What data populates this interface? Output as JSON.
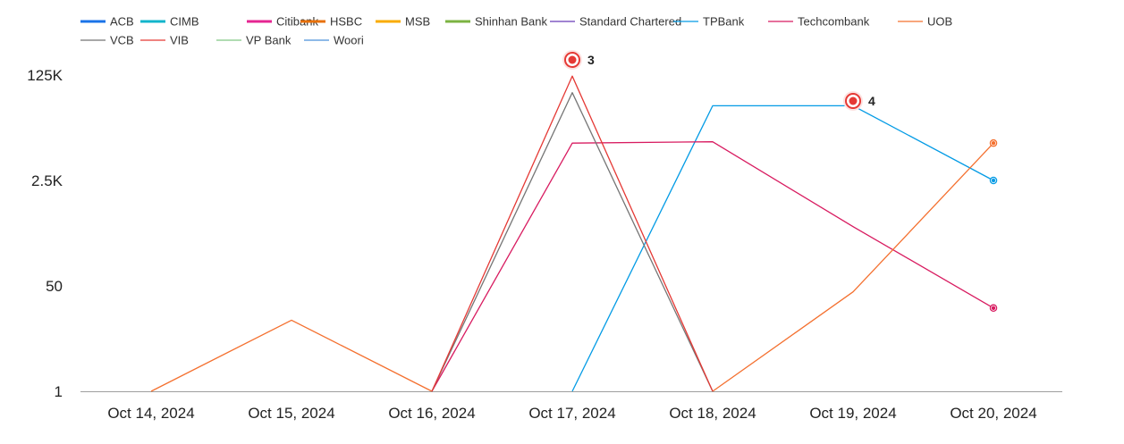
{
  "chart_data": {
    "type": "line",
    "title": "",
    "xlabel": "",
    "ylabel": "",
    "y_scale": "log",
    "y_ticks": [
      {
        "value": 1,
        "label": "1"
      },
      {
        "value": 50,
        "label": "50"
      },
      {
        "value": 2500,
        "label": "2.5K"
      },
      {
        "value": 125000,
        "label": "125K"
      }
    ],
    "ylim": [
      1,
      125000
    ],
    "grid": false,
    "legend_position": "top",
    "categories": [
      "Oct 14, 2024",
      "Oct 15, 2024",
      "Oct 16, 2024",
      "Oct 17, 2024",
      "Oct 18, 2024",
      "Oct 19, 2024",
      "Oct 20, 2024"
    ],
    "series": [
      {
        "name": "ACB",
        "color": "#1a73e8",
        "legend_style": "thick",
        "values": [
          null,
          null,
          null,
          null,
          null,
          null,
          null
        ]
      },
      {
        "name": "CIMB",
        "color": "#12b5cb",
        "legend_style": "thick",
        "values": [
          null,
          null,
          null,
          null,
          null,
          null,
          null
        ]
      },
      {
        "name": "Citibank",
        "color": "#e52592",
        "legend_style": "thick",
        "values": [
          null,
          null,
          null,
          null,
          null,
          null,
          null
        ]
      },
      {
        "name": "HSBC",
        "color": "#e8710a",
        "legend_style": "thick",
        "values": [
          null,
          null,
          null,
          null,
          null,
          null,
          null
        ]
      },
      {
        "name": "MSB",
        "color": "#f9ab00",
        "legend_style": "thick",
        "values": [
          null,
          null,
          null,
          null,
          null,
          null,
          null
        ]
      },
      {
        "name": "Shinhan Bank",
        "color": "#7cb342",
        "legend_style": "thick",
        "values": [
          null,
          null,
          null,
          null,
          null,
          null,
          null
        ]
      },
      {
        "name": "Standard Chartered",
        "color": "#673ab7",
        "legend_style": "thin",
        "values": [
          null,
          null,
          null,
          null,
          null,
          null,
          null
        ]
      },
      {
        "name": "TPBank",
        "color": "#039be5",
        "legend_style": "thin",
        "values": [
          null,
          null,
          null,
          1,
          40000,
          40000,
          2500
        ],
        "end_marker": true
      },
      {
        "name": "Techcombank",
        "color": "#d81b60",
        "legend_style": "thin",
        "values": [
          null,
          null,
          1,
          10000,
          10500,
          450,
          22
        ],
        "end_marker": true
      },
      {
        "name": "UOB",
        "color": "#f4702f",
        "legend_style": "thin",
        "values": [
          1,
          14,
          1,
          null,
          1,
          40,
          10000
        ],
        "end_marker": true
      },
      {
        "name": "VCB",
        "color": "#757575",
        "legend_style": "thin",
        "values": [
          null,
          null,
          1,
          65000,
          1,
          null,
          null
        ]
      },
      {
        "name": "VIB",
        "color": "#e53935",
        "legend_style": "thin",
        "values": [
          null,
          null,
          1,
          120000,
          1,
          null,
          null
        ]
      },
      {
        "name": "VP Bank",
        "color": "#81c784",
        "legend_style": "thin",
        "values": [
          null,
          null,
          null,
          null,
          null,
          null,
          null
        ]
      },
      {
        "name": "Woori",
        "color": "#4a90d9",
        "legend_style": "thin",
        "values": [
          null,
          null,
          null,
          null,
          null,
          null,
          null
        ]
      }
    ],
    "annotations": [
      {
        "label": "3",
        "category": "Oct 17, 2024",
        "color": "#e53935"
      },
      {
        "label": "4",
        "category": "Oct 19, 2024",
        "color": "#e53935"
      }
    ]
  }
}
